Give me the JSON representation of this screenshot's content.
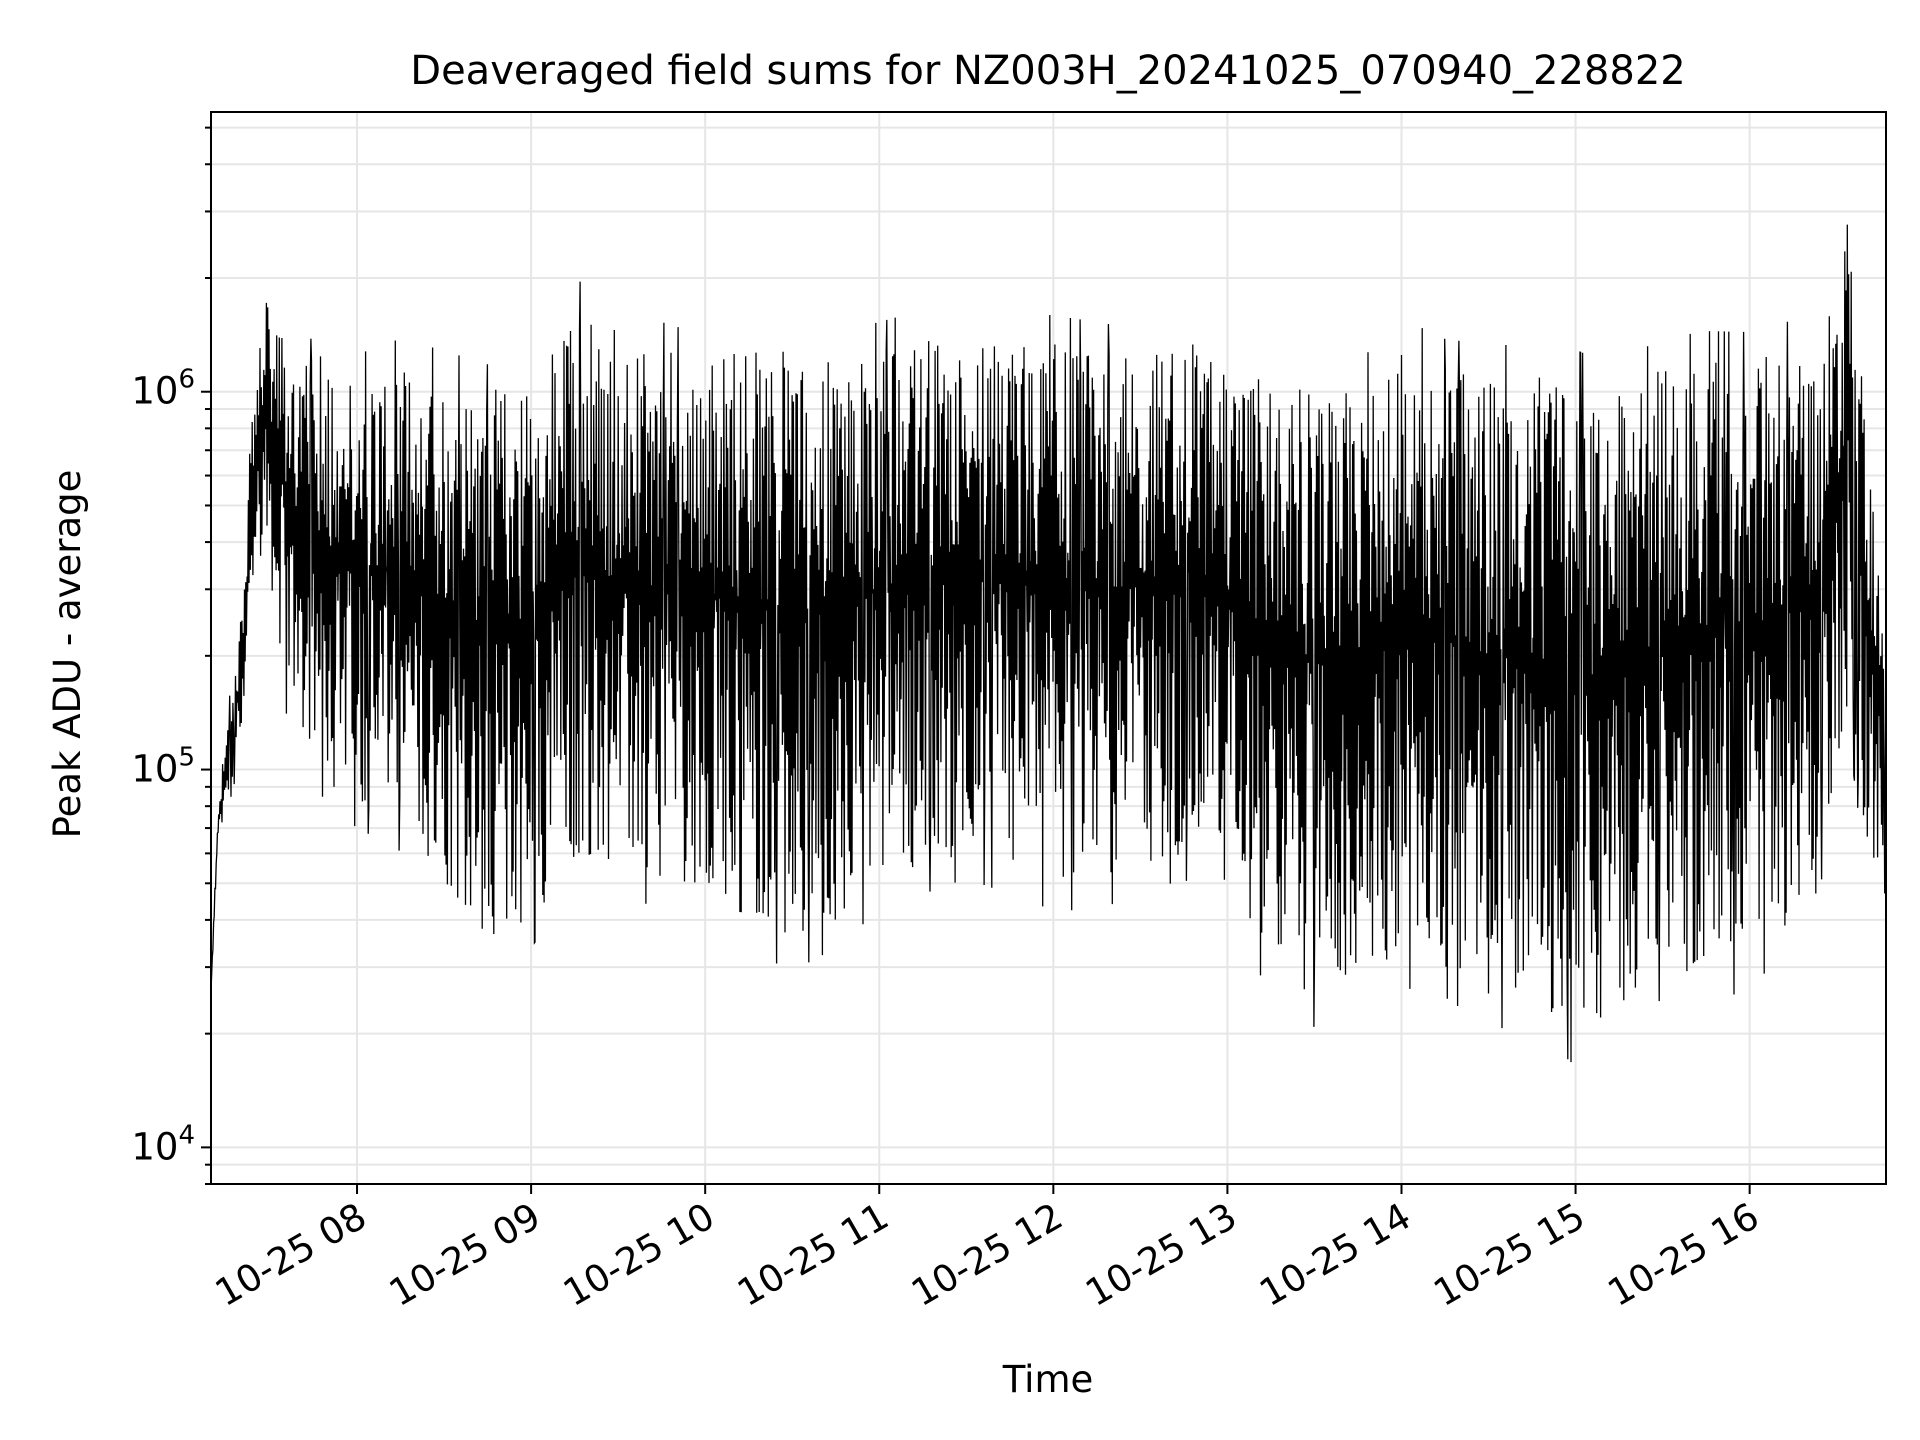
{
  "chart_data": {
    "type": "line",
    "title": "Deaveraged field sums for NZ003H_20241025_070940_228822",
    "xlabel": "Time",
    "ylabel": "Peak ADU - average",
    "x_axis": {
      "type": "time",
      "range": [
        "2024-10-25 07:09:40",
        "2024-10-25 16:47:00"
      ],
      "tick_values": [
        "2024-10-25 08:00",
        "2024-10-25 09:00",
        "2024-10-25 10:00",
        "2024-10-25 11:00",
        "2024-10-25 12:00",
        "2024-10-25 13:00",
        "2024-10-25 14:00",
        "2024-10-25 15:00",
        "2024-10-25 16:00"
      ],
      "tick_labels": [
        "10-25 08",
        "10-25 09",
        "10-25 10",
        "10-25 11",
        "10-25 12",
        "10-25 13",
        "10-25 14",
        "10-25 15",
        "10-25 16"
      ]
    },
    "y_axis": {
      "scale": "log",
      "range": [
        8000,
        5500000
      ],
      "tick_values": [
        10000,
        100000,
        1000000
      ],
      "tick_labels": [
        {
          "base": "10",
          "exp": "4"
        },
        {
          "base": "10",
          "exp": "5"
        },
        {
          "base": "10",
          "exp": "6"
        }
      ]
    },
    "grid": true,
    "line_color": "#000000",
    "grid_color": "#e6e6e6",
    "series": [
      {
        "x": [
          "2024-10-25 07:09:40",
          "2024-10-25 07:12",
          "2024-10-25 07:16",
          "2024-10-25 07:20",
          "2024-10-25 07:24",
          "2024-10-25 07:28",
          "2024-10-25 07:32",
          "2024-10-25 07:36",
          "2024-10-25 07:42",
          "2024-10-25 07:50",
          "2024-10-25 08:00",
          "2024-10-25 08:15",
          "2024-10-25 08:30",
          "2024-10-25 08:45",
          "2024-10-25 09:00",
          "2024-10-25 09:18",
          "2024-10-25 09:30",
          "2024-10-25 09:45",
          "2024-10-25 10:00",
          "2024-10-25 10:15",
          "2024-10-25 10:30",
          "2024-10-25 10:45",
          "2024-10-25 11:00",
          "2024-10-25 11:15",
          "2024-10-25 11:30",
          "2024-10-25 11:45",
          "2024-10-25 12:00",
          "2024-10-25 12:15",
          "2024-10-25 12:30",
          "2024-10-25 12:45",
          "2024-10-25 13:00",
          "2024-10-25 13:15",
          "2024-10-25 13:30",
          "2024-10-25 13:45",
          "2024-10-25 14:00",
          "2024-10-25 14:15",
          "2024-10-25 14:30",
          "2024-10-25 14:45",
          "2024-10-25 15:00",
          "2024-10-25 15:15",
          "2024-10-25 15:30",
          "2024-10-25 15:45",
          "2024-10-25 16:00",
          "2024-10-25 16:15",
          "2024-10-25 16:25",
          "2024-10-25 16:34",
          "2024-10-25 16:40",
          "2024-10-25 16:47"
        ],
        "y_high": [
          26000,
          80000,
          150000,
          250000,
          900000,
          1800000,
          1500000,
          1400000,
          1200000,
          1300000,
          1100000,
          1200000,
          1100000,
          1000000,
          1100000,
          1700000,
          1200000,
          1300000,
          1200000,
          1400000,
          1300000,
          1200000,
          1300000,
          1400000,
          1300000,
          1400000,
          1350000,
          1300000,
          1250000,
          1400000,
          1200000,
          1050000,
          1000000,
          1000000,
          1300000,
          1150000,
          1100000,
          1100000,
          1050000,
          1000000,
          1150000,
          1200000,
          1200000,
          1300000,
          1200000,
          3500000,
          900000,
          200000
        ],
        "y_low": [
          26000,
          60000,
          80000,
          120000,
          300000,
          400000,
          250000,
          150000,
          120000,
          90000,
          80000,
          70000,
          50000,
          35000,
          40000,
          60000,
          55000,
          50000,
          50000,
          40000,
          35000,
          40000,
          50000,
          55000,
          60000,
          55000,
          50000,
          50000,
          55000,
          60000,
          50000,
          30000,
          25000,
          28000,
          32000,
          30000,
          25000,
          25000,
          20000,
          22000,
          30000,
          28000,
          32000,
          40000,
          60000,
          150000,
          60000,
          50000
        ]
      }
    ]
  }
}
